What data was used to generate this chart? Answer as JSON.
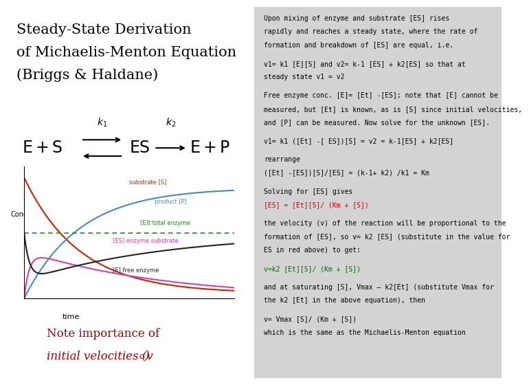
{
  "title_lines": [
    "Steady-State Derivation",
    "of Michaelis-Menton Equation",
    "(Briggs & Haldane)"
  ],
  "title_fontsize": 15,
  "left_bg": "#ffffff",
  "right_bg": "#d3d3d3",
  "right_panel_blocks": [
    {
      "lines": [
        {
          "text": "Upon mixing of enzyme and substrate [ES] rises",
          "color": "#000000"
        },
        {
          "text": "rapidly and reaches a steady state, where the rate of",
          "color": "#000000"
        },
        {
          "text": "formation and breakdown of [ES] are equal, i.e.",
          "color": "#000000"
        }
      ]
    },
    {
      "lines": [
        {
          "text": "v1= k1 [E][S] and v2= k-1 [ES] + k2[ES] so that at",
          "color": "#000000"
        },
        {
          "text": "steady state v1 = v2",
          "color": "#000000"
        }
      ]
    },
    {
      "lines": [
        {
          "text": "Free enzyme conc. [E]= [Et] -[ES]; note that [E] cannot be",
          "color": "#000000"
        },
        {
          "text": "measured, but [Et] is known, as is [S] since initial velocities,",
          "color": "#000000"
        },
        {
          "text": "and [P] can be measured. Now solve for the unknown [ES].",
          "color": "#000000"
        }
      ]
    },
    {
      "lines": [
        {
          "text": "v1= k1 ([Et] -[ ES])[S] = v2 = k-1[ES] + k2[ES]",
          "color": "#000000"
        }
      ]
    },
    {
      "lines": [
        {
          "text": "rearrange",
          "color": "#000000"
        },
        {
          "text": "([Et] -[ES])[S]/[ES] = (k-1+ k2) /k1 = Km",
          "color": "#000000"
        }
      ]
    },
    {
      "lines": [
        {
          "text": "Solving for [ES] gives",
          "color": "#000000"
        },
        {
          "text": "[ES] = [Et][S]/ (Km + [S])",
          "color": "#cc0000"
        }
      ]
    },
    {
      "lines": [
        {
          "text": "the velocity (v) of the reaction will be proportional to the",
          "color": "#000000"
        },
        {
          "text": "formation of [ES], so v= k2 [ES] (substitute in the value for",
          "color": "#000000"
        },
        {
          "text": "ES in red above) to get:",
          "color": "#000000"
        }
      ]
    },
    {
      "lines": [
        {
          "text": "v=k2 [Et][S]/ (Km + [S])",
          "color": "#006600"
        }
      ]
    },
    {
      "lines": [
        {
          "text": "and at saturating [S], Vmax – k2[Et] (substitute Vmax for",
          "color": "#000000"
        },
        {
          "text": "the k2 [Et] in the above equation), then",
          "color": "#000000"
        }
      ]
    },
    {
      "lines": [
        {
          "text": "v= Vmax [S]/ (Km + [S])",
          "color": "#000000"
        },
        {
          "text": "which is the same as the Michaelis-Menton equation",
          "color": "#000000"
        }
      ]
    }
  ],
  "note_line1": "Note importance of",
  "note_line2_pre": "initial velocities (v",
  "note_subscript": "o",
  "note_line2_post": ")",
  "graph_bg": "#ffffff",
  "curve_colors": {
    "substrate": "#cc2200",
    "product": "#4488cc",
    "total_enzyme": "#228822",
    "es_complex": "#cc44aa",
    "free_enzyme": "#222222"
  },
  "label_colors": {
    "substrate": "#cc2200",
    "product": "#4488cc",
    "total_enzyme": "#228822",
    "es_complex": "#cc44aa",
    "free_enzyme": "#222222"
  }
}
